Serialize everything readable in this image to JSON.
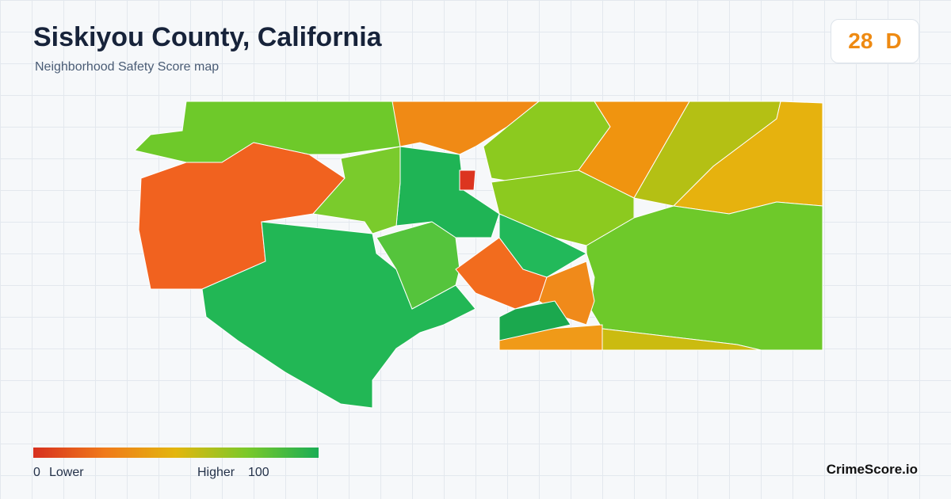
{
  "header": {
    "title": "Siskiyou County, California",
    "subtitle": "Neighborhood Safety Score map"
  },
  "score": {
    "value": 28,
    "grade": "D"
  },
  "legend": {
    "min": 0,
    "min_label": "Lower",
    "max_label": "Higher",
    "max": 100
  },
  "brand": "CrimeScore.io"
}
